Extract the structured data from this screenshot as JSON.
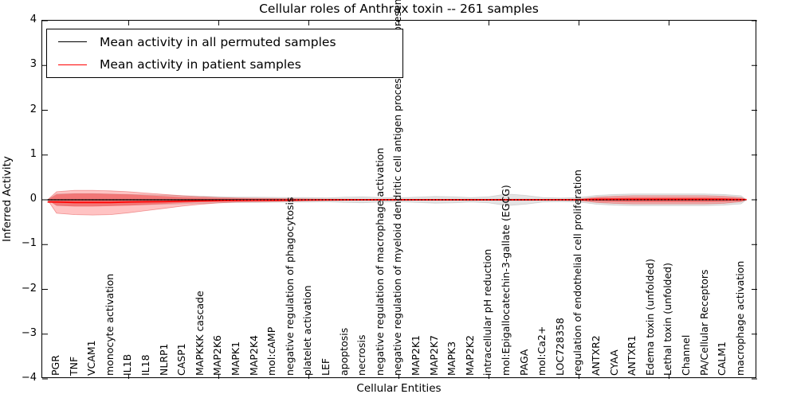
{
  "title": "Cellular roles of Anthrax toxin -- 261 samples",
  "axes": {
    "xlabel": "Cellular Entities",
    "ylabel": "Inferred Activity",
    "ytick_labels": [
      "4",
      "3",
      "2",
      "1",
      "0",
      "−1",
      "−2",
      "−3",
      "−4"
    ],
    "ytick_values": [
      4,
      3,
      2,
      1,
      0,
      -1,
      -2,
      -3,
      -4
    ]
  },
  "legend": {
    "items": [
      {
        "label": "Mean activity in all permuted samples",
        "color": "#000000"
      },
      {
        "label": "Mean activity in patient samples",
        "color": "#ff0000"
      }
    ]
  },
  "chart_data": {
    "type": "area",
    "title": "Cellular roles of Anthrax toxin -- 261 samples",
    "xlabel": "Cellular Entities",
    "ylabel": "Inferred Activity",
    "ylim": [
      -4,
      4
    ],
    "yticks": [
      4,
      3,
      2,
      1,
      0,
      -1,
      -2,
      -3,
      -4
    ],
    "grid": false,
    "legend_position": "upper left",
    "categories": [
      "PGR",
      "TNF",
      "VCAM1",
      "monocyte activation",
      "IL1B",
      "IL18",
      "NLRP1",
      "CASP1",
      "MAPKKK cascade",
      "MAP2K6",
      "MAPK1",
      "MAP2K4",
      "mol:cAMP",
      "negative regulation of phagocytosis",
      "platelet activation",
      "LEF",
      "apoptosis",
      "necrosis",
      "negative regulation of macrophage activation",
      "negative regulation of myeloid dendritic cell antigen processing and presentation",
      "MAP2K1",
      "MAP2K7",
      "MAPK3",
      "MAP2K2",
      "intracellular pH reduction",
      "mol:Epigallocatechin-3-gallate (EGCG)",
      "PAGA",
      "mol:Ca2+",
      "LOC728358",
      "regulation of endothelial cell proliferation",
      "ANTXR2",
      "CYAA",
      "ANTXR1",
      "Edema toxin (unfolded)",
      "Lethal toxin (unfolded)",
      "Channel",
      "PA/Cellular Receptors",
      "CALM1",
      "macrophage activation"
    ],
    "series": [
      {
        "name": "Mean activity in all permuted samples",
        "color": "#000000",
        "values": [
          0,
          0,
          0,
          0,
          0,
          0,
          0,
          0,
          0,
          0,
          0,
          0,
          0,
          0,
          0,
          0,
          0,
          0,
          0,
          0,
          0,
          0,
          0,
          0,
          0,
          0,
          0,
          0,
          0,
          0,
          0,
          0,
          0,
          0,
          0,
          0,
          0,
          0,
          0
        ]
      },
      {
        "name": "Mean activity in patient samples",
        "color": "#ff0000",
        "values": [
          -0.05,
          -0.06,
          -0.06,
          -0.06,
          -0.05,
          -0.045,
          -0.04,
          -0.03,
          -0.025,
          -0.02,
          -0.015,
          -0.012,
          -0.01,
          -0.008,
          -0.005,
          -0.003,
          0,
          0,
          0,
          0,
          0,
          0,
          0,
          0,
          0,
          0,
          0,
          0,
          0,
          0,
          0.01,
          0.01,
          0.01,
          0.01,
          0.01,
          0.01,
          0.01,
          0.01,
          0.005
        ]
      }
    ],
    "bands": {
      "permuted_envelope": {
        "color": "rgba(128,128,128,0.22)",
        "half_width": [
          0.13,
          0.14,
          0.14,
          0.13,
          0.12,
          0.11,
          0.1,
          0.09,
          0.08,
          0.07,
          0.06,
          0.06,
          0.055,
          0.05,
          0.05,
          0.045,
          0.06,
          0.065,
          0.05,
          0.045,
          0.06,
          0.075,
          0.07,
          0.05,
          0.07,
          0.13,
          0.1,
          0.05,
          0.04,
          0.05,
          0.1,
          0.12,
          0.13,
          0.13,
          0.13,
          0.13,
          0.13,
          0.12,
          0.09
        ]
      },
      "patient_outer": {
        "color": "rgba(255,40,40,0.28)",
        "edge_color": "rgba(220,50,50,0.45)",
        "top": [
          0.18,
          0.21,
          0.21,
          0.2,
          0.18,
          0.15,
          0.12,
          0.09,
          0.07,
          0.05,
          0.04,
          0.035,
          0.03,
          0.025,
          0.02,
          0.015,
          0.012,
          0.01,
          0.01,
          0.01,
          0.01,
          0.01,
          0.01,
          0.01,
          0.01,
          0.012,
          0.012,
          0.01,
          0.01,
          0.015,
          0.06,
          0.08,
          0.09,
          0.09,
          0.09,
          0.09,
          0.09,
          0.08,
          0.05
        ],
        "bottom": [
          0.3,
          0.33,
          0.34,
          0.33,
          0.29,
          0.24,
          0.19,
          0.14,
          0.1,
          0.07,
          0.05,
          0.045,
          0.035,
          0.03,
          0.02,
          0.015,
          0.012,
          0.01,
          0.01,
          0.01,
          0.01,
          0.01,
          0.01,
          0.01,
          0.01,
          0.012,
          0.012,
          0.01,
          0.01,
          0.015,
          0.06,
          0.08,
          0.09,
          0.09,
          0.09,
          0.09,
          0.09,
          0.08,
          0.04
        ]
      },
      "patient_inner": {
        "color": "rgba(255,30,30,0.38)",
        "top": [
          0.12,
          0.14,
          0.14,
          0.13,
          0.12,
          0.1,
          0.08,
          0.06,
          0.05,
          0.035,
          0.03,
          0.025,
          0.02,
          0.015,
          0.012,
          0.01,
          0.008,
          0.008,
          0.008,
          0.008,
          0.008,
          0.008,
          0.008,
          0.008,
          0.008,
          0.008,
          0.008,
          0.008,
          0.008,
          0.01,
          0.04,
          0.05,
          0.055,
          0.055,
          0.055,
          0.055,
          0.055,
          0.05,
          0.03
        ],
        "bottom": [
          0.13,
          0.15,
          0.15,
          0.14,
          0.13,
          0.11,
          0.09,
          0.07,
          0.05,
          0.04,
          0.03,
          0.025,
          0.02,
          0.015,
          0.012,
          0.01,
          0.008,
          0.008,
          0.008,
          0.008,
          0.008,
          0.008,
          0.008,
          0.008,
          0.008,
          0.008,
          0.008,
          0.008,
          0.008,
          0.01,
          0.04,
          0.05,
          0.055,
          0.055,
          0.055,
          0.055,
          0.055,
          0.05,
          0.03
        ]
      }
    },
    "baseline_dotted_y": 0
  }
}
